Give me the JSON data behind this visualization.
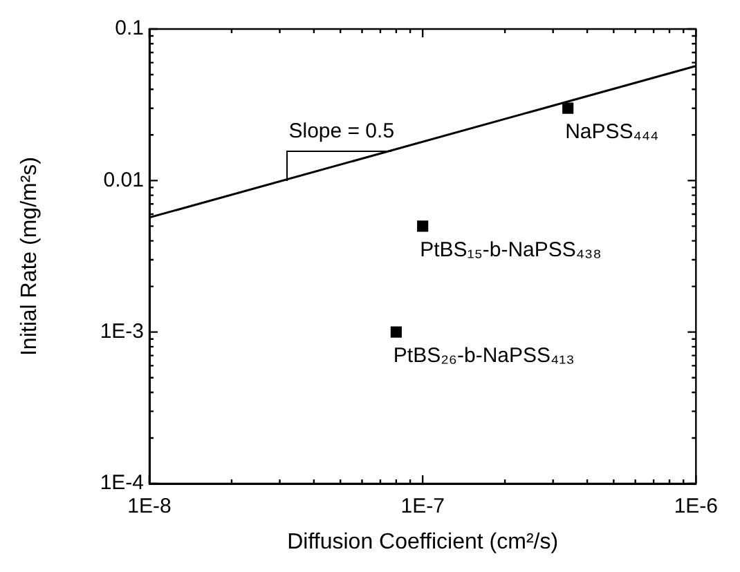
{
  "chart_data": {
    "type": "scatter",
    "xlabel": "Diffusion Coefficient (cm²/s)",
    "ylabel": "Initial Rate (mg/m²s)",
    "log": "xy",
    "grid": false,
    "xlim": [
      1e-08,
      1e-06
    ],
    "ylim": [
      0.0001,
      0.1
    ],
    "xticks": [
      {
        "value": 1e-08,
        "label": "1E-8"
      },
      {
        "value": 2e-08,
        "label": null
      },
      {
        "value": 3e-08,
        "label": null
      },
      {
        "value": 4e-08,
        "label": null
      },
      {
        "value": 5e-08,
        "label": null
      },
      {
        "value": 6e-08,
        "label": null
      },
      {
        "value": 7e-08,
        "label": null
      },
      {
        "value": 8e-08,
        "label": null
      },
      {
        "value": 9e-08,
        "label": null
      },
      {
        "value": 1e-07,
        "label": "1E-7"
      },
      {
        "value": 2e-07,
        "label": null
      },
      {
        "value": 3e-07,
        "label": null
      },
      {
        "value": 4e-07,
        "label": null
      },
      {
        "value": 5e-07,
        "label": null
      },
      {
        "value": 6e-07,
        "label": null
      },
      {
        "value": 7e-07,
        "label": null
      },
      {
        "value": 8e-07,
        "label": null
      },
      {
        "value": 9e-07,
        "label": null
      },
      {
        "value": 1e-06,
        "label": "1E-6"
      }
    ],
    "yticks": [
      {
        "value": 0.0001,
        "label": "1E-4"
      },
      {
        "value": 0.0002,
        "label": null
      },
      {
        "value": 0.0003,
        "label": null
      },
      {
        "value": 0.0004,
        "label": null
      },
      {
        "value": 0.0005,
        "label": null
      },
      {
        "value": 0.0006,
        "label": null
      },
      {
        "value": 0.0007,
        "label": null
      },
      {
        "value": 0.0008,
        "label": null
      },
      {
        "value": 0.0009,
        "label": null
      },
      {
        "value": 0.001,
        "label": "1E-3"
      },
      {
        "value": 0.002,
        "label": null
      },
      {
        "value": 0.003,
        "label": null
      },
      {
        "value": 0.004,
        "label": null
      },
      {
        "value": 0.005,
        "label": null
      },
      {
        "value": 0.006,
        "label": null
      },
      {
        "value": 0.007,
        "label": null
      },
      {
        "value": 0.008,
        "label": null
      },
      {
        "value": 0.009,
        "label": null
      },
      0.01,
      {
        "value": 0.02,
        "label": null
      },
      {
        "value": 0.03,
        "label": null
      },
      {
        "value": 0.04,
        "label": null
      },
      {
        "value": 0.05,
        "label": null
      },
      {
        "value": 0.06,
        "label": null
      },
      {
        "value": 0.07,
        "label": null
      },
      {
        "value": 0.08,
        "label": null
      },
      {
        "value": 0.09,
        "label": null
      },
      0.1
    ],
    "series": [
      {
        "type": "line",
        "color": "#000000",
        "marker": "none",
        "x": [
          1e-08,
          1e-06
        ],
        "values": [
          0.0057,
          0.057
        ]
      },
      {
        "name": "NaPSS₄₄₄",
        "color": "#000000",
        "marker": "square",
        "x": [
          3.4e-07
        ],
        "values": [
          0.03
        ]
      },
      {
        "name": "PtBS₁₅-b-NaPSS₄₃₈",
        "color": "#000000",
        "marker": "square",
        "x": [
          1e-07
        ],
        "values": [
          0.005
        ]
      },
      {
        "name": "PtBS₂₆-b-NaPSS₄₁₃",
        "color": "#000000",
        "marker": "square",
        "x": [
          8e-08
        ],
        "values": [
          0.001
        ]
      }
    ],
    "annotations": [
      {
        "text": "Slope = 0.5",
        "x": 3.16e-08,
        "y": 0.01
      }
    ]
  }
}
